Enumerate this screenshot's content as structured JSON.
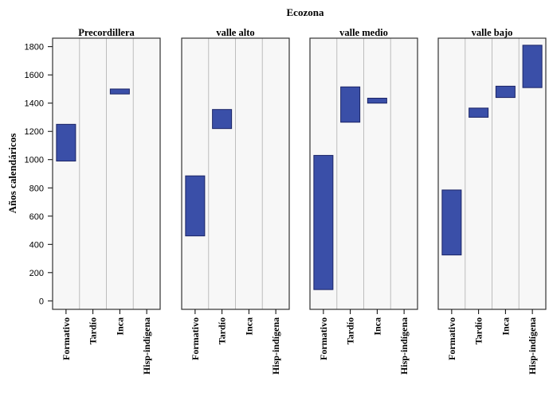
{
  "chart_data": {
    "type": "bar",
    "subtype": "floating-range",
    "title": "Ecozona",
    "ylabel": "Años calendáricos",
    "xlabel": "",
    "ylim": [
      -60,
      1860
    ],
    "yticks": [
      0,
      200,
      400,
      600,
      800,
      1000,
      1200,
      1400,
      1600,
      1800
    ],
    "categories": [
      "Formativo",
      "Tardío",
      "Inca",
      "Hisp-indígena"
    ],
    "bar_color": "#3a4fa8",
    "grid": "vertical separators between categories",
    "panels": [
      {
        "name": "Precordillera",
        "ranges": [
          {
            "category": "Formativo",
            "low": 990,
            "high": 1250
          },
          {
            "category": "Inca",
            "low": 1465,
            "high": 1500
          }
        ]
      },
      {
        "name": "valle alto",
        "ranges": [
          {
            "category": "Formativo",
            "low": 460,
            "high": 885
          },
          {
            "category": "Tardío",
            "low": 1220,
            "high": 1355
          }
        ]
      },
      {
        "name": "valle medio",
        "ranges": [
          {
            "category": "Formativo",
            "low": 80,
            "high": 1030
          },
          {
            "category": "Tardío",
            "low": 1265,
            "high": 1515
          },
          {
            "category": "Inca",
            "low": 1400,
            "high": 1435
          }
        ]
      },
      {
        "name": "valle bajo",
        "ranges": [
          {
            "category": "Formativo",
            "low": 325,
            "high": 785
          },
          {
            "category": "Tardío",
            "low": 1300,
            "high": 1365
          },
          {
            "category": "Inca",
            "low": 1440,
            "high": 1520
          },
          {
            "category": "Hisp-indígena",
            "low": 1510,
            "high": 1810
          }
        ]
      }
    ]
  }
}
